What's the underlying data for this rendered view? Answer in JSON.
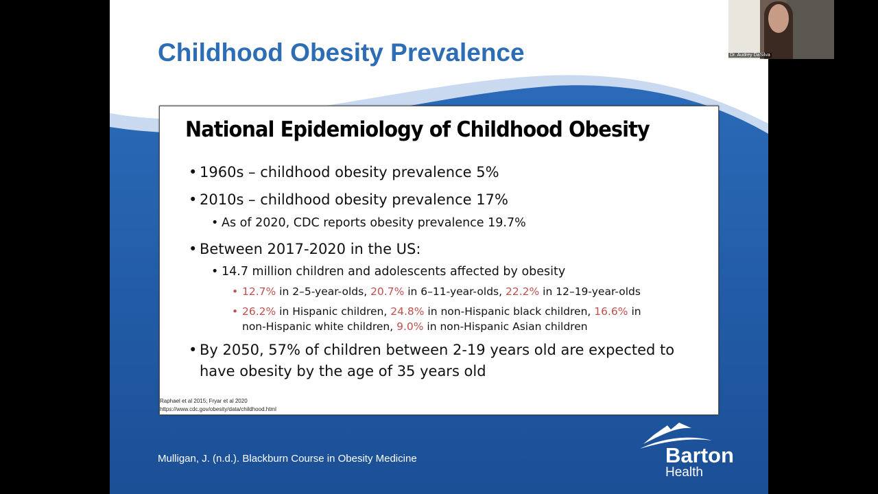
{
  "slide": {
    "title": "Childhood Obesity Prevalence",
    "box_title": "National Epidemiology of Childhood Obesity",
    "bullets": {
      "b1": "1960s – childhood obesity prevalence 5%",
      "b2": "2010s – childhood obesity prevalence 17%",
      "b2_sub": "As of 2020, CDC reports obesity prevalence 19.7%",
      "b3": "Between 2017-2020 in the US:",
      "b3_sub": "14.7 million children and adolescents affected by obesity",
      "age": {
        "v1": "12.7%",
        "t1": " in 2–5-year-olds, ",
        "v2": "20.7%",
        "t2": " in 6–11-year-olds, ",
        "v3": "22.2%",
        "t3": " in 12–19-year-olds"
      },
      "eth": {
        "v1": "26.2%",
        "t1": " in Hispanic children, ",
        "v2": "24.8%",
        "t2": " in non-Hispanic black children, ",
        "v3": "16.6%",
        "t3": " in non-Hispanic white children, ",
        "v4": "9.0%",
        "t4": " in non-Hispanic Asian children"
      },
      "b4": "By 2050, 57% of children between 2-19 years old are expected to have obesity by the age of 35 years old"
    },
    "citation1": "Raphael et al 2015; Fryar et al 2020",
    "citation2": "https://www.cdc.gov/obesity/data/childhood.html",
    "footer": "Mulligan, J. (n.d.). Blackburn Course in Obesity Medicine",
    "logo": {
      "name": "Barton",
      "sub": "Health"
    },
    "colors": {
      "title": "#2d6db5",
      "highlight": "#c0504d",
      "background_blue": "#1f5aa6"
    }
  },
  "video": {
    "participant_name": "Dr. Audrey DaSilva"
  }
}
